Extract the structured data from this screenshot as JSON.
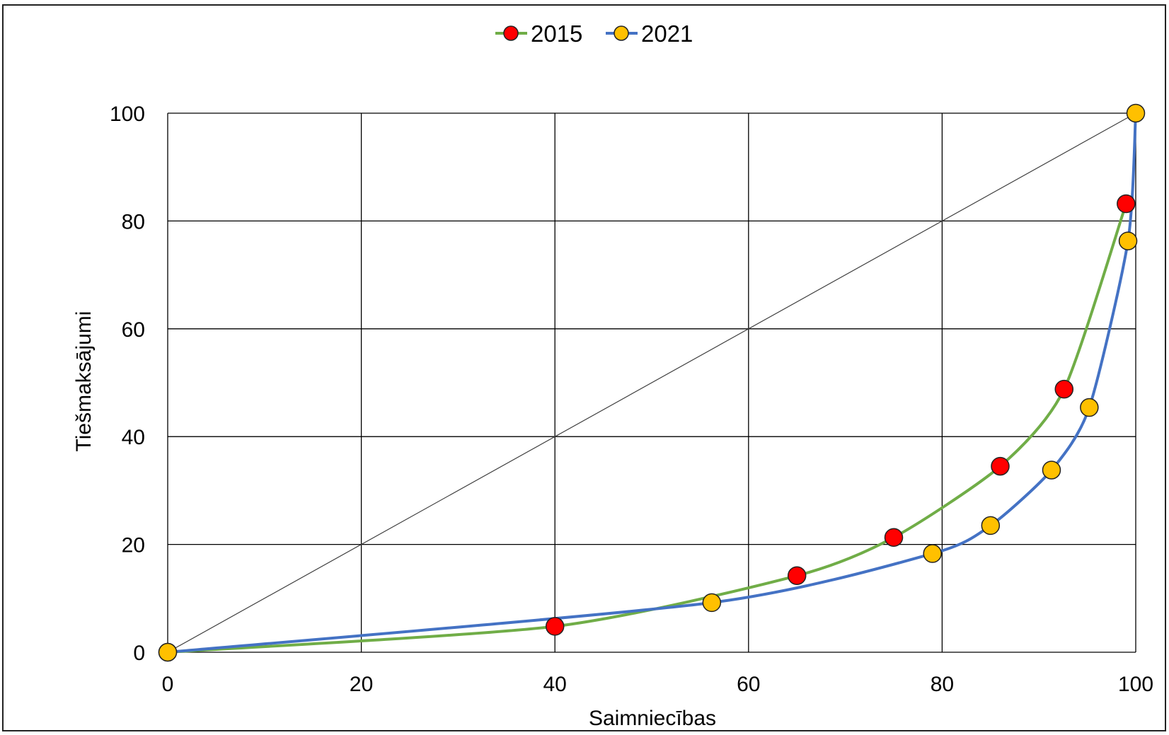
{
  "chart_data": {
    "type": "line",
    "title": "",
    "xlabel": "Saimniecības",
    "ylabel": "Tiešmaksājumi",
    "xlim": [
      0,
      100
    ],
    "ylim": [
      0,
      100
    ],
    "x_ticks": [
      "0",
      "20",
      "40",
      "60",
      "80",
      "100"
    ],
    "y_ticks": [
      "0",
      "20",
      "40",
      "60",
      "80",
      "100"
    ],
    "grid": true,
    "legend_position": "top",
    "reference_line": {
      "x": [
        0,
        100
      ],
      "y": [
        0,
        100
      ],
      "color": "#404040"
    },
    "series": [
      {
        "name": "2015",
        "line_color": "#70AD47",
        "marker_color": "#FF0000",
        "x": [
          0,
          40,
          65,
          75,
          86,
          92.6,
          99
        ],
        "y": [
          0,
          4.8,
          14.2,
          21.3,
          34.5,
          48.8,
          83.2
        ]
      },
      {
        "name": "2021",
        "line_color": "#4472C4",
        "marker_color": "#FFC000",
        "x": [
          0,
          56.2,
          79,
          85,
          91.3,
          95.2,
          99.2,
          100
        ],
        "y": [
          0,
          9.2,
          18.3,
          23.5,
          33.8,
          45.4,
          76.3,
          100
        ]
      }
    ]
  }
}
